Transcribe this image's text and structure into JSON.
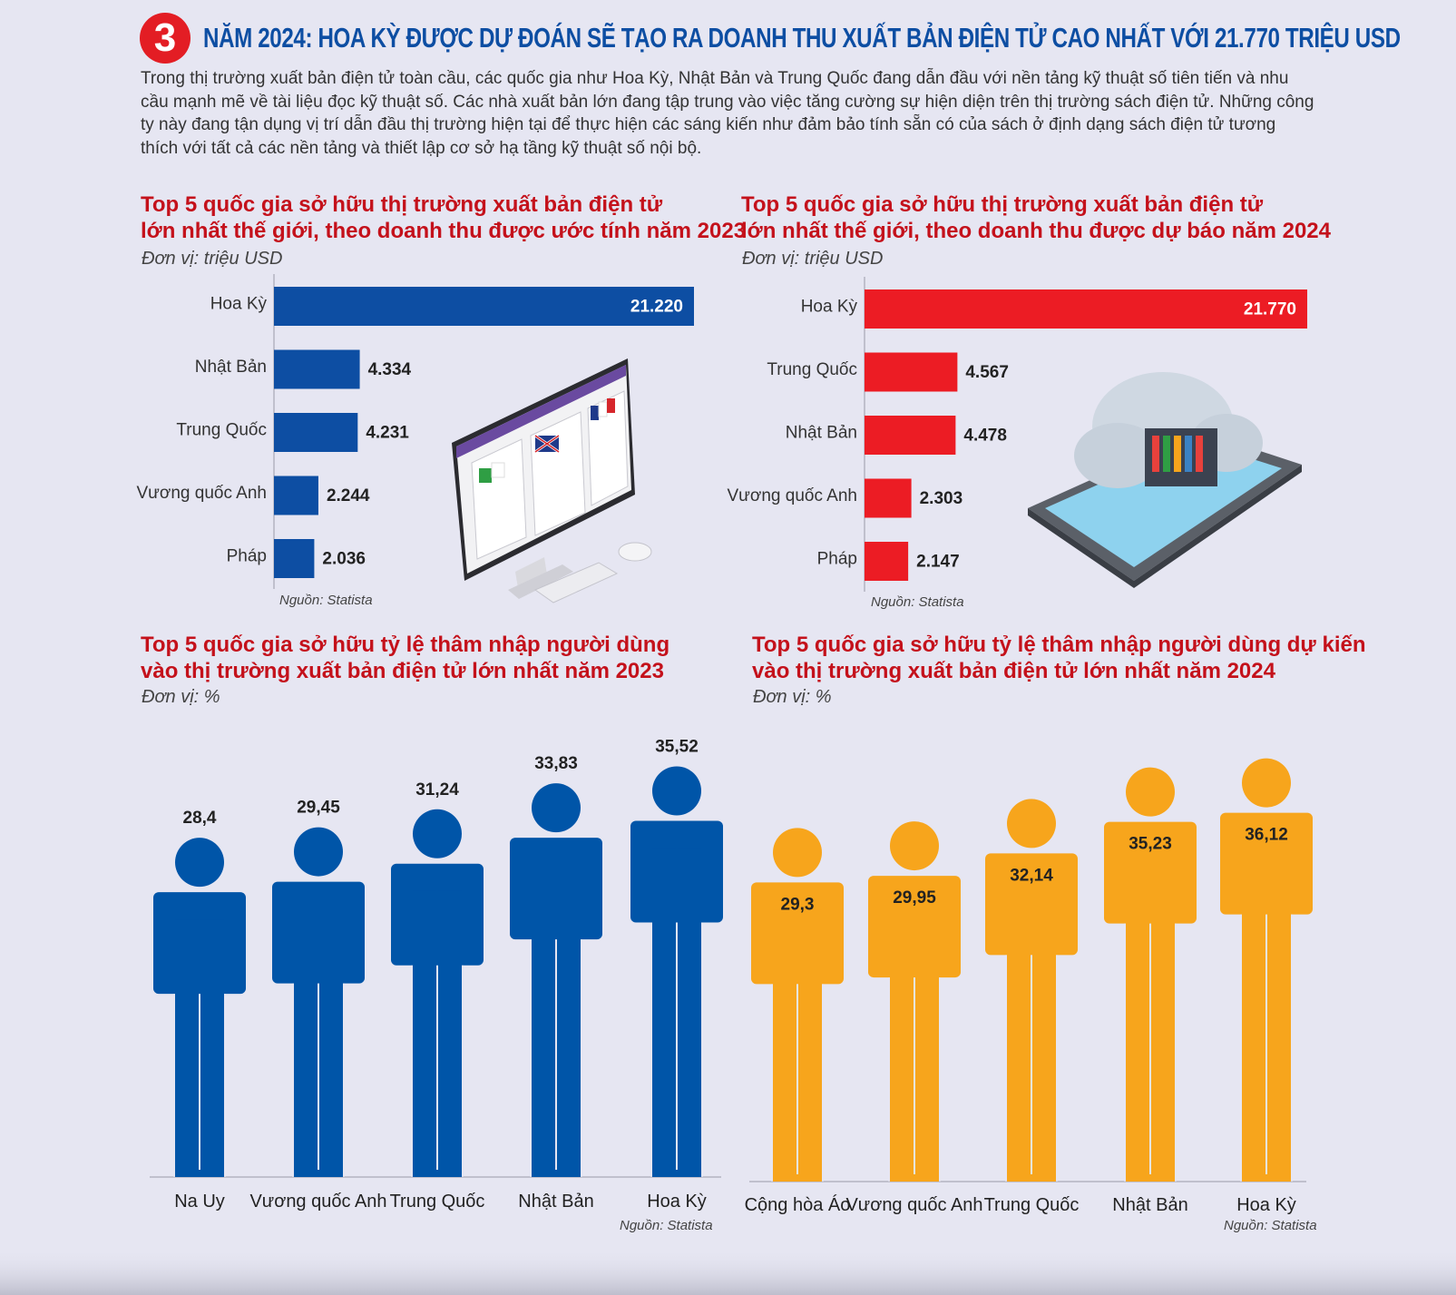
{
  "header": {
    "number": "3",
    "title": "NĂM 2024: HOA KỲ ĐƯỢC DỰ ĐOÁN SẼ TẠO RA DOANH THU XUẤT BẢN ĐIỆN TỬ CAO NHẤT VỚI 21.770 TRIỆU USD"
  },
  "intro": "Trong thị trường xuất bản điện tử toàn cầu, các quốc gia như Hoa Kỳ, Nhật Bản và Trung Quốc đang dẫn đầu với nền tảng kỹ thuật số tiên tiến và nhu cầu mạnh mẽ về tài liệu đọc kỹ thuật số. Các nhà xuất bản lớn đang tập trung vào việc tăng cường sự hiện diện trên thị trường sách điện tử. Những công ty này đang tận dụng vị trí dẫn đầu thị trường hiện tại để thực hiện các sáng kiến như đảm bảo tính sẵn có của sách ở định dạng sách điện tử tương thích với tất cả các nền tảng và thiết lập cơ sở hạ tầng kỹ thuật số nội bộ.",
  "chart_data": [
    {
      "type": "bar",
      "orientation": "horizontal",
      "title_line1": "Top 5 quốc gia sở hữu thị trường xuất bản điện tử",
      "title_line2": "lớn nhất thế giới, theo doanh thu được ước tính năm 2023",
      "unit": "Đơn vị: triệu USD",
      "source": "Nguồn: Statista",
      "categories": [
        "Hoa Kỳ",
        "Nhật Bản",
        "Trung Quốc",
        "Vương quốc Anh",
        "Pháp"
      ],
      "values": [
        21220,
        4334,
        4231,
        2244,
        2036
      ],
      "labels": [
        "21.220",
        "4.334",
        "4.231",
        "2.244",
        "2.036"
      ],
      "color": "#0d4ea3"
    },
    {
      "type": "bar",
      "orientation": "horizontal",
      "title_line1": "Top 5 quốc gia sở hữu thị trường xuất bản điện tử",
      "title_line2": "lớn nhất thế giới, theo doanh thu được dự báo năm 2024",
      "unit": "Đơn vị: triệu USD",
      "source": "Nguồn: Statista",
      "categories": [
        "Hoa Kỳ",
        "Trung Quốc",
        "Nhật Bản",
        "Vương quốc Anh",
        "Pháp"
      ],
      "values": [
        21770,
        4567,
        4478,
        2303,
        2147
      ],
      "labels": [
        "21.770",
        "4.567",
        "4.478",
        "2.303",
        "2.147"
      ],
      "color": "#ec1c24"
    },
    {
      "type": "bar",
      "style": "pictogram",
      "title_line1": "Top 5 quốc gia sở hữu tỷ lệ thâm nhập người dùng",
      "title_line2": "vào thị trường xuất bản điện tử lớn nhất năm 2023",
      "unit": "Đơn vị: %",
      "source": "Nguồn: Statista",
      "categories": [
        "Na Uy",
        "Vương quốc Anh",
        "Trung Quốc",
        "Nhật Bản",
        "Hoa Kỳ"
      ],
      "values": [
        28.4,
        29.45,
        31.24,
        33.83,
        35.52
      ],
      "labels": [
        "28,4",
        "29,45",
        "31,24",
        "33,83",
        "35,52"
      ],
      "color": "#0055a8"
    },
    {
      "type": "bar",
      "style": "pictogram",
      "title_line1": "Top 5 quốc gia sở hữu tỷ lệ thâm nhập người dùng dự kiến",
      "title_line2": "vào thị trường xuất bản điện tử lớn nhất năm 2024",
      "unit": "Đơn vị: %",
      "source": "Nguồn: Statista",
      "categories": [
        "Cộng hòa Áo",
        "Vương quốc Anh",
        "Trung Quốc",
        "Nhật Bản",
        "Hoa Kỳ"
      ],
      "values": [
        29.3,
        29.95,
        32.14,
        35.23,
        36.12
      ],
      "labels": [
        "29,3",
        "29,95",
        "32,14",
        "35,23",
        "36,12"
      ],
      "color": "#f7a51c"
    }
  ]
}
